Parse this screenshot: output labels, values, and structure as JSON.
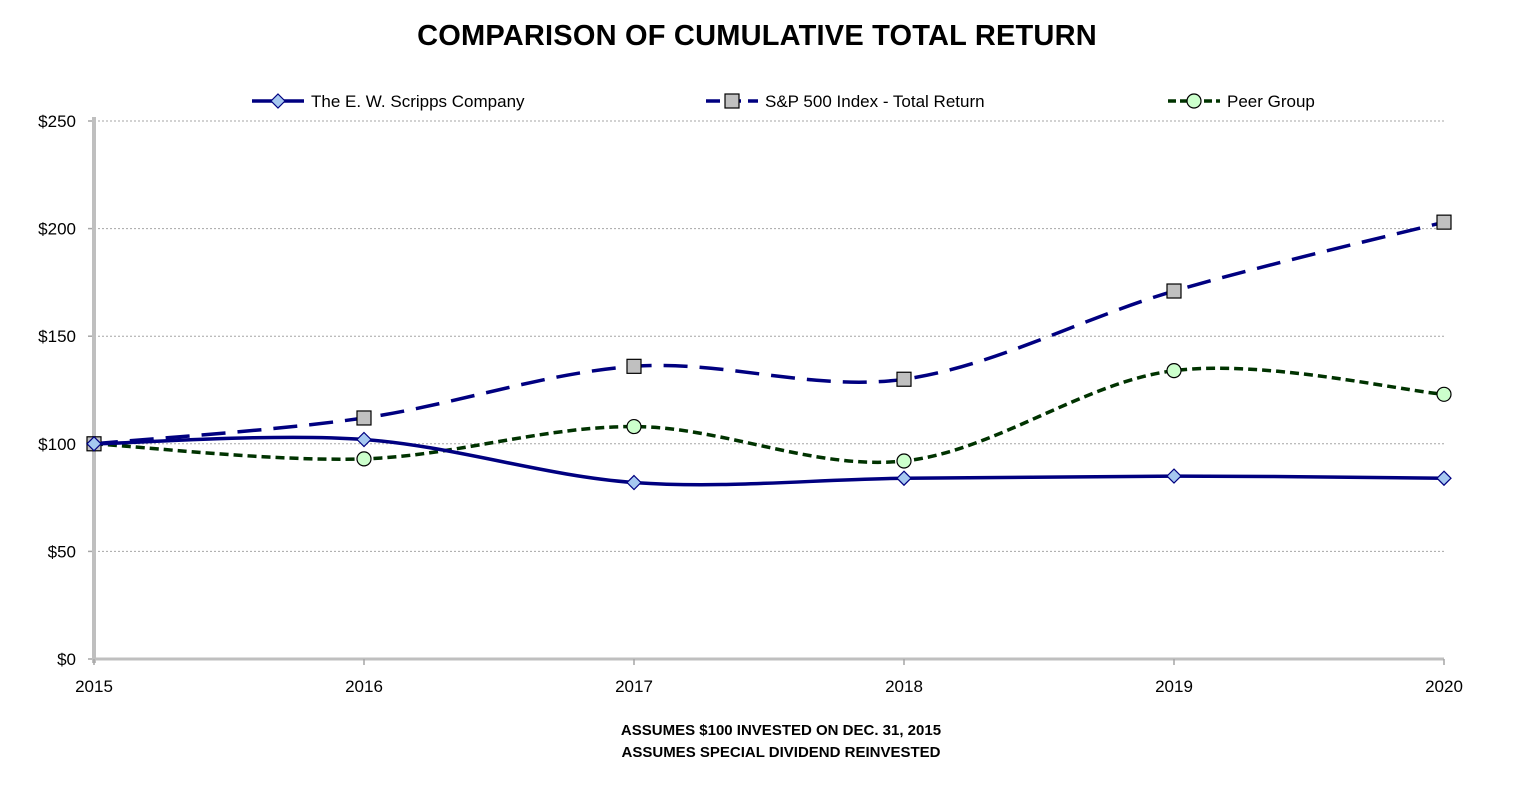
{
  "chart_data": {
    "type": "line",
    "title": "COMPARISON OF CUMULATIVE TOTAL RETURN",
    "x": [
      "2015",
      "2016",
      "2017",
      "2018",
      "2019",
      "2020"
    ],
    "ylim": [
      0,
      250
    ],
    "yticks": [
      0,
      50,
      100,
      150,
      200,
      250
    ],
    "ytick_labels": [
      "$0",
      "$50",
      "$100",
      "$150",
      "$200",
      "$250"
    ],
    "grid": true,
    "legend_position": "top",
    "series": [
      {
        "name": "The E. W. Scripps Company",
        "values": [
          100,
          102,
          82,
          84,
          85,
          84
        ],
        "color": "#000080",
        "line_style": "solid",
        "marker": "diamond",
        "marker_fill": "#a6c8f0"
      },
      {
        "name": "S&P 500 Index - Total Return",
        "values": [
          100,
          112,
          136,
          130,
          171,
          203
        ],
        "color": "#000080",
        "line_style": "dashed",
        "marker": "square",
        "marker_fill": "#c0c0c0"
      },
      {
        "name": "Peer Group",
        "values": [
          100,
          93,
          108,
          92,
          134,
          123
        ],
        "color": "#003300",
        "line_style": "dotted",
        "marker": "circle",
        "marker_fill": "#ccffcc"
      }
    ],
    "notes": [
      "ASSUMES $100 INVESTED ON DEC. 31, 2015",
      "ASSUMES SPECIAL DIVIDEND REINVESTED"
    ]
  }
}
